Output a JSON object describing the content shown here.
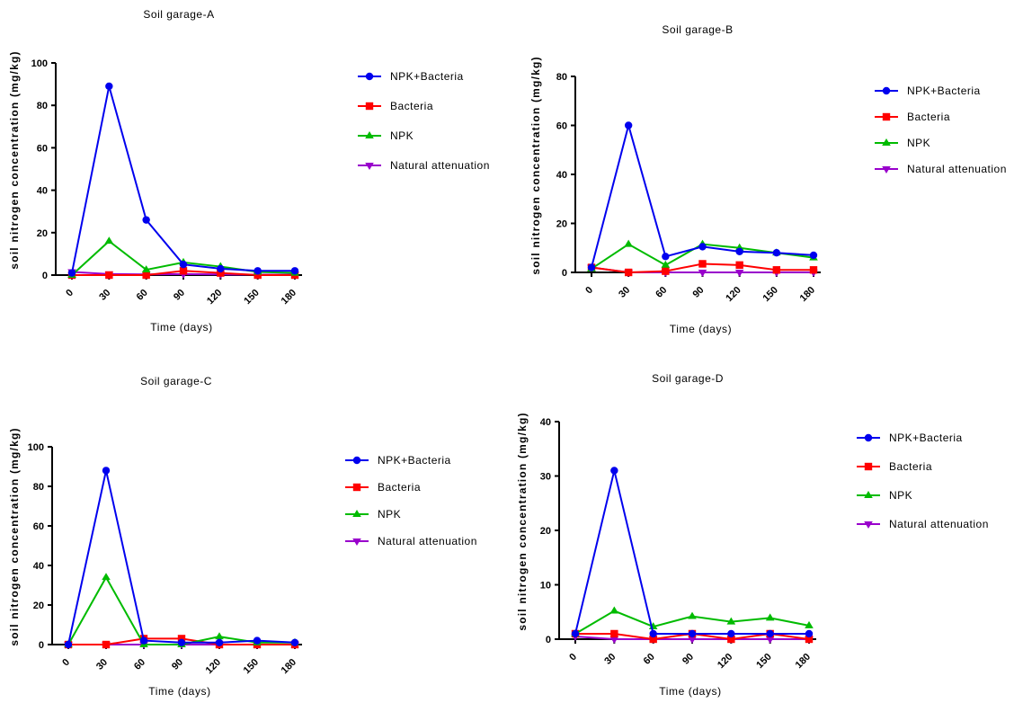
{
  "chart_data": [
    {
      "type": "line",
      "title": "Soil garage-A",
      "xlabel": "Time (days)",
      "ylabel": "soil  nitrogen concentration (mg/kg)",
      "x": [
        0,
        30,
        60,
        90,
        120,
        150,
        180
      ],
      "ylim": [
        0,
        100
      ],
      "yticks": [
        0,
        20,
        40,
        60,
        80,
        100
      ],
      "legend": "right",
      "series": [
        {
          "name": "NPK+Bacteria",
          "color": "#0000ee",
          "marker": "circle",
          "values": [
            1,
            89,
            26,
            5,
            3,
            2,
            2
          ]
        },
        {
          "name": "Bacteria",
          "color": "#ff0000",
          "marker": "square",
          "values": [
            0,
            0,
            0,
            2,
            1,
            0,
            0
          ]
        },
        {
          "name": "NPK",
          "color": "#00bb00",
          "marker": "triangle-up",
          "values": [
            0,
            16,
            2.5,
            6,
            4,
            1.5,
            1
          ]
        },
        {
          "name": "Natural attenuation",
          "color": "#9900cc",
          "marker": "triangle-down",
          "values": [
            1.5,
            0.5,
            0.3,
            0.5,
            0.3,
            0.2,
            0.2
          ]
        }
      ]
    },
    {
      "type": "line",
      "title": "Soil garage-B",
      "xlabel": "Time (days)",
      "ylabel": "soil  nitrogen concentration (mg/kg)",
      "x": [
        0,
        30,
        60,
        90,
        120,
        150,
        180
      ],
      "ylim": [
        0,
        80
      ],
      "yticks": [
        0,
        20,
        40,
        60,
        80
      ],
      "legend": "right",
      "series": [
        {
          "name": "NPK+Bacteria",
          "color": "#0000ee",
          "marker": "circle",
          "values": [
            2,
            60,
            6.5,
            10.5,
            8.5,
            8,
            7
          ]
        },
        {
          "name": "Bacteria",
          "color": "#ff0000",
          "marker": "square",
          "values": [
            2,
            0,
            0.5,
            3.5,
            3,
            1,
            1
          ]
        },
        {
          "name": "NPK",
          "color": "#00bb00",
          "marker": "triangle-up",
          "values": [
            1.5,
            11.5,
            3,
            11.5,
            10,
            8,
            6
          ]
        },
        {
          "name": "Natural attenuation",
          "color": "#9900cc",
          "marker": "triangle-down",
          "values": [
            2,
            0,
            0,
            0,
            0,
            0,
            0
          ]
        }
      ]
    },
    {
      "type": "line",
      "title": "Soil garage-C",
      "xlabel": "Time (days)",
      "ylabel": "soil  nitrogen concentration (mg/kg)",
      "x": [
        0,
        30,
        60,
        90,
        120,
        150,
        180
      ],
      "ylim": [
        0,
        100
      ],
      "yticks": [
        0,
        20,
        40,
        60,
        80,
        100
      ],
      "legend": "right",
      "series": [
        {
          "name": "NPK+Bacteria",
          "color": "#0000ee",
          "marker": "circle",
          "values": [
            0,
            88,
            2,
            1,
            1,
            2,
            1
          ]
        },
        {
          "name": "Bacteria",
          "color": "#ff0000",
          "marker": "square",
          "values": [
            0,
            0,
            3,
            3,
            0,
            0,
            0
          ]
        },
        {
          "name": "NPK",
          "color": "#00bb00",
          "marker": "triangle-up",
          "values": [
            0,
            34,
            0,
            0,
            4,
            1,
            1
          ]
        },
        {
          "name": "Natural attenuation",
          "color": "#9900cc",
          "marker": "triangle-down",
          "values": [
            0,
            0,
            0,
            0,
            0,
            0,
            0
          ]
        }
      ]
    },
    {
      "type": "line",
      "title": "Soil garage-D",
      "xlabel": "Time (days)",
      "ylabel": "soil  nitrogen concentration (mg/kg)",
      "x": [
        0,
        30,
        60,
        90,
        120,
        150,
        180
      ],
      "ylim": [
        0,
        40
      ],
      "yticks": [
        0,
        10,
        20,
        30,
        40
      ],
      "legend": "right",
      "series": [
        {
          "name": "NPK+Bacteria",
          "color": "#0000ee",
          "marker": "circle",
          "values": [
            1,
            31,
            1,
            1,
            1,
            1,
            1
          ]
        },
        {
          "name": "Bacteria",
          "color": "#ff0000",
          "marker": "square",
          "values": [
            1,
            1,
            0,
            1,
            0,
            1,
            0
          ]
        },
        {
          "name": "NPK",
          "color": "#00bb00",
          "marker": "triangle-up",
          "values": [
            1,
            5.2,
            2.3,
            4.2,
            3.2,
            3.9,
            2.5
          ]
        },
        {
          "name": "Natural attenuation",
          "color": "#9900cc",
          "marker": "triangle-down",
          "values": [
            0.5,
            0,
            0,
            0,
            0,
            0,
            0
          ]
        }
      ]
    }
  ]
}
